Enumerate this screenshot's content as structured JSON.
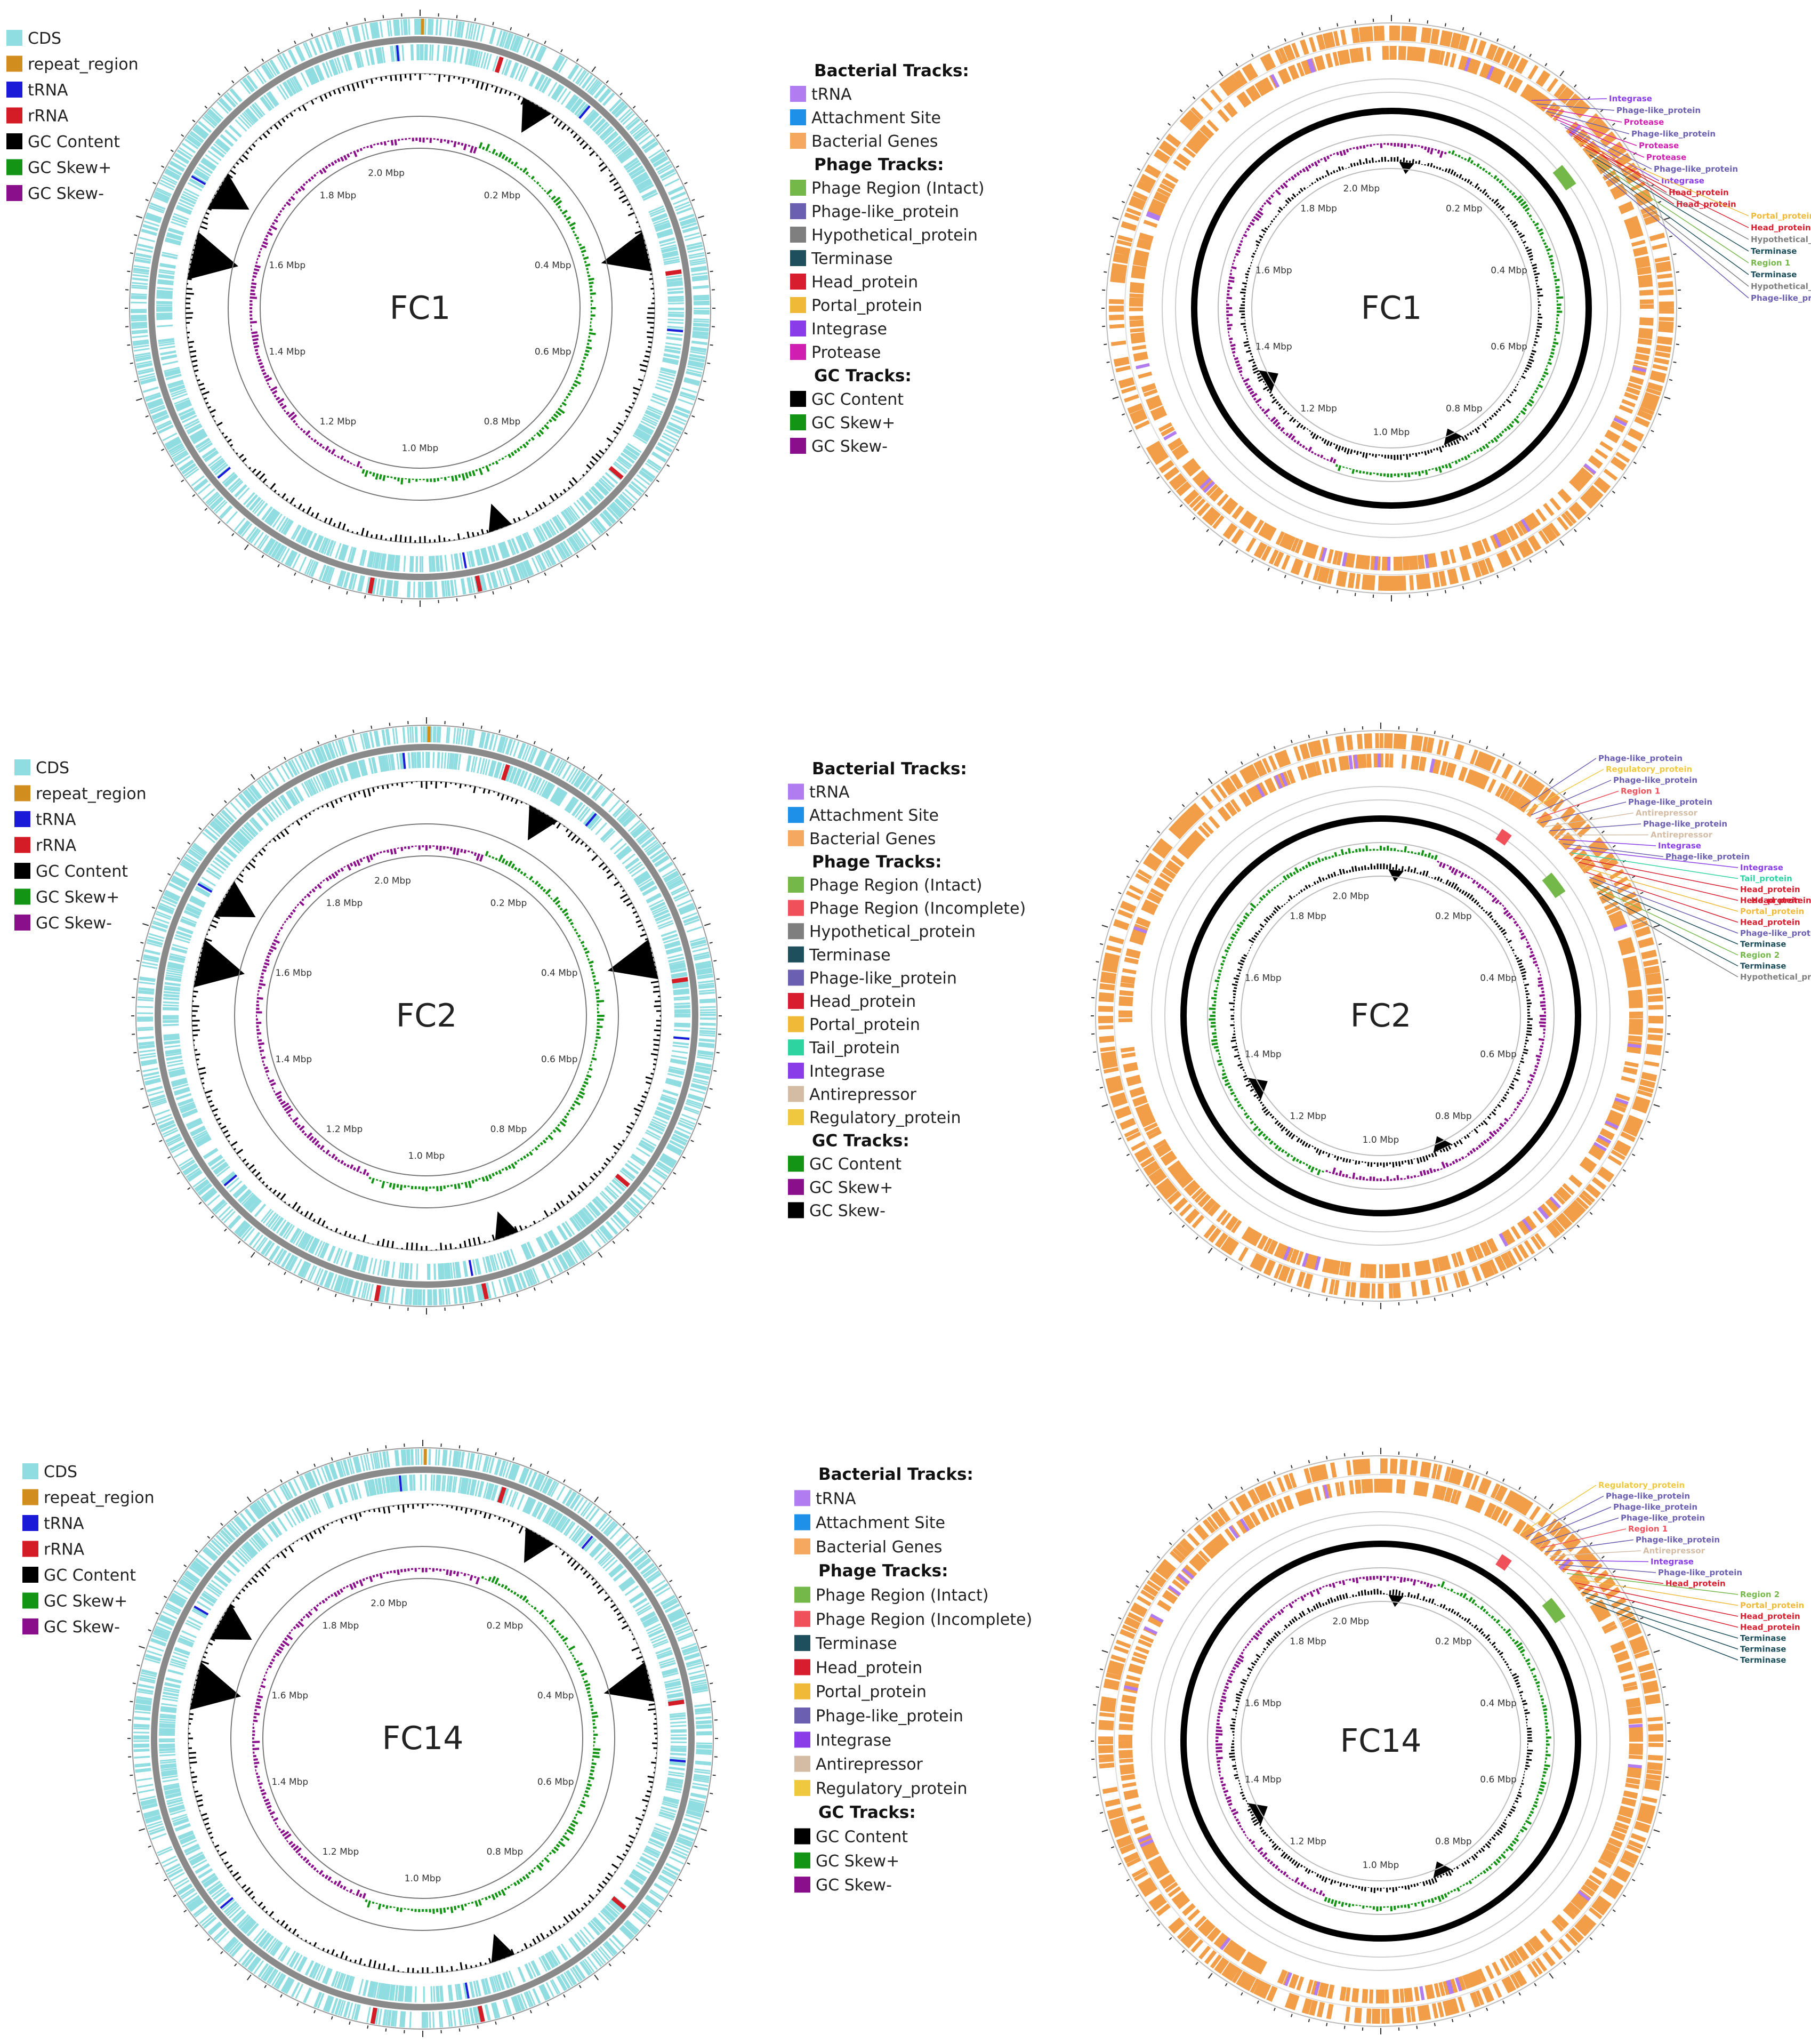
{
  "colors": {
    "CDS": "#8fdde0",
    "repeat_region": "#d18e1e",
    "tRNA_left": "#1a1ad8",
    "rRNA": "#d41c26",
    "GC_Content": "#000000",
    "GC_Skew_plus": "#149414",
    "GC_Skew_minus": "#8a0f8a",
    "ring_gray": "#8a8a8a",
    "tRNA_right": "#b07cf0",
    "Attachment_Site": "#1e90e8",
    "Bacterial_Genes": "#f5a860",
    "gene_orange": "#f08c28",
    "Phage_Region_Intact": "#74b84a",
    "Phage_Region_Incomplete": "#f0505a",
    "Hypothetical_protein": "#7f7f7f",
    "Terminase": "#1d4f5c",
    "Phage_like_protein": "#6a5fb0",
    "Head_protein": "#d81e2e",
    "Portal_protein": "#f0ba38",
    "Tail_protein": "#2ed4a0",
    "Integrase": "#8a3ce8",
    "Protease": "#d01eb0",
    "Antirepressor": "#d4bca4",
    "Regulatory_protein": "#f0c840"
  },
  "tick_labels": [
    "2.0 Mbp",
    "0.2 Mbp",
    "0.4 Mbp",
    "0.6 Mbp",
    "0.8 Mbp",
    "1.0 Mbp",
    "1.2 Mbp",
    "1.4 Mbp",
    "1.6 Mbp",
    "1.8 Mbp"
  ],
  "left_legend": [
    {
      "label": "CDS",
      "color": "#8fdde0"
    },
    {
      "label": "repeat_region",
      "color": "#d18e1e"
    },
    {
      "label": "tRNA",
      "color": "#1a1ad8"
    },
    {
      "label": "rRNA",
      "color": "#d41c26"
    },
    {
      "label": "GC Content",
      "color": "#000000"
    },
    {
      "label": "GC Skew+",
      "color": "#149414"
    },
    {
      "label": "GC Skew-",
      "color": "#8a0f8a"
    }
  ],
  "panels": [
    {
      "name": "FC1",
      "legend": [
        {
          "header": "Bacterial Tracks:"
        },
        {
          "label": "tRNA",
          "color": "#b07cf0"
        },
        {
          "label": "Attachment Site",
          "color": "#1e90e8"
        },
        {
          "label": "Bacterial Genes",
          "color": "#f5a860"
        },
        {
          "header": "Phage Tracks:"
        },
        {
          "label": "Phage Region (Intact)",
          "color": "#74b84a"
        },
        {
          "label": "Phage-like_protein",
          "color": "#6a5fb0"
        },
        {
          "label": "Hypothetical_protein",
          "color": "#7f7f7f"
        },
        {
          "label": "Terminase",
          "color": "#1d4f5c"
        },
        {
          "label": "Head_protein",
          "color": "#d81e2e"
        },
        {
          "label": "Portal_protein",
          "color": "#f0ba38"
        },
        {
          "label": "Integrase",
          "color": "#8a3ce8"
        },
        {
          "label": "Protease",
          "color": "#d01eb0"
        },
        {
          "header": "GC Tracks:"
        },
        {
          "label": "GC Content",
          "color": "#000000"
        },
        {
          "label": "GC Skew+",
          "color": "#149414"
        },
        {
          "label": "GC Skew-",
          "color": "#8a0f8a"
        }
      ],
      "callouts": [
        {
          "label": "Integrase",
          "color": "#8a3ce8"
        },
        {
          "label": "Phage-like_protein",
          "color": "#6a5fb0"
        },
        {
          "label": "Protease",
          "color": "#d01eb0"
        },
        {
          "label": "Phage-like_protein",
          "color": "#6a5fb0"
        },
        {
          "label": "Protease",
          "color": "#d01eb0"
        },
        {
          "label": "Protease",
          "color": "#d01eb0"
        },
        {
          "label": "Phage-like_protein",
          "color": "#6a5fb0"
        },
        {
          "label": "Integrase",
          "color": "#8a3ce8"
        },
        {
          "label": "Head_protein",
          "color": "#d81e2e"
        },
        {
          "label": "Head_protein",
          "color": "#d81e2e"
        },
        {
          "label": "Portal_protein",
          "color": "#f0ba38"
        },
        {
          "label": "Head_protein",
          "color": "#d81e2e"
        },
        {
          "label": "Hypothetical_protein",
          "color": "#7f7f7f"
        },
        {
          "label": "Terminase",
          "color": "#1d4f5c"
        },
        {
          "label": "Region 1",
          "color": "#74b84a"
        },
        {
          "label": "Terminase",
          "color": "#1d4f5c"
        },
        {
          "label": "Hypothetical_protein",
          "color": "#7f7f7f"
        },
        {
          "label": "Phage-like_protein",
          "color": "#6a5fb0"
        }
      ]
    },
    {
      "name": "FC2",
      "legend": [
        {
          "header": "Bacterial Tracks:"
        },
        {
          "label": "tRNA",
          "color": "#b07cf0"
        },
        {
          "label": "Attachment Site",
          "color": "#1e90e8"
        },
        {
          "label": "Bacterial Genes",
          "color": "#f5a860"
        },
        {
          "header": "Phage Tracks:"
        },
        {
          "label": "Phage Region (Intact)",
          "color": "#74b84a"
        },
        {
          "label": "Phage Region (Incomplete)",
          "color": "#f0505a"
        },
        {
          "label": "Hypothetical_protein",
          "color": "#7f7f7f"
        },
        {
          "label": "Terminase",
          "color": "#1d4f5c"
        },
        {
          "label": "Phage-like_protein",
          "color": "#6a5fb0"
        },
        {
          "label": "Head_protein",
          "color": "#d81e2e"
        },
        {
          "label": "Portal_protein",
          "color": "#f0ba38"
        },
        {
          "label": "Tail_protein",
          "color": "#2ed4a0"
        },
        {
          "label": "Integrase",
          "color": "#8a3ce8"
        },
        {
          "label": "Antirepressor",
          "color": "#d4bca4"
        },
        {
          "label": "Regulatory_protein",
          "color": "#f0c840"
        },
        {
          "header": "GC Tracks:"
        },
        {
          "label": "GC Content",
          "color": "#149414"
        },
        {
          "label": "GC Skew+",
          "color": "#8a0f8a"
        },
        {
          "label": "GC Skew-",
          "color": "#000000"
        }
      ],
      "callouts": [
        {
          "label": "Phage-like_protein",
          "color": "#6a5fb0"
        },
        {
          "label": "Regulatory_protein",
          "color": "#f0c840"
        },
        {
          "label": "Phage-like_protein",
          "color": "#6a5fb0"
        },
        {
          "label": "Region 1",
          "color": "#f0505a"
        },
        {
          "label": "Phage-like_protein",
          "color": "#6a5fb0"
        },
        {
          "label": "Antirepressor",
          "color": "#d4bca4"
        },
        {
          "label": "Phage-like_protein",
          "color": "#6a5fb0"
        },
        {
          "label": "Antirepressor",
          "color": "#d4bca4"
        },
        {
          "label": "Integrase",
          "color": "#8a3ce8"
        },
        {
          "label": "Phage-like_protein",
          "color": "#6a5fb0"
        },
        {
          "label": "Integrase",
          "color": "#8a3ce8"
        },
        {
          "label": "Tail_protein",
          "color": "#2ed4a0"
        },
        {
          "label": "Head_protein",
          "color": "#d81e2e"
        },
        {
          "label": "Head_protein",
          "color": "#d81e2e"
        },
        {
          "label": "Portal_protein",
          "color": "#f0ba38"
        },
        {
          "label": "Head_protein",
          "color": "#d81e2e"
        },
        {
          "label": "Phage-like_protein",
          "color": "#6a5fb0"
        },
        {
          "label": "Terminase",
          "color": "#1d4f5c"
        },
        {
          "label": "Region 2",
          "color": "#74b84a"
        },
        {
          "label": "Terminase",
          "color": "#1d4f5c"
        },
        {
          "label": "Hypothetical_protein",
          "color": "#7f7f7f"
        }
      ],
      "extra_callout": {
        "label": "Head_protein",
        "color": "#d81e2e"
      }
    },
    {
      "name": "FC14",
      "legend": [
        {
          "header": "Bacterial Tracks:"
        },
        {
          "label": "tRNA",
          "color": "#b07cf0"
        },
        {
          "label": "Attachment Site",
          "color": "#1e90e8"
        },
        {
          "label": "Bacterial Genes",
          "color": "#f5a860"
        },
        {
          "header": "Phage Tracks:"
        },
        {
          "label": "Phage Region (Intact)",
          "color": "#74b84a"
        },
        {
          "label": "Phage Region (Incomplete)",
          "color": "#f0505a"
        },
        {
          "label": "Terminase",
          "color": "#1d4f5c"
        },
        {
          "label": "Head_protein",
          "color": "#d81e2e"
        },
        {
          "label": "Portal_protein",
          "color": "#f0ba38"
        },
        {
          "label": "Phage-like_protein",
          "color": "#6a5fb0"
        },
        {
          "label": "Integrase",
          "color": "#8a3ce8"
        },
        {
          "label": "Antirepressor",
          "color": "#d4bca4"
        },
        {
          "label": "Regulatory_protein",
          "color": "#f0c840"
        },
        {
          "header": "GC Tracks:"
        },
        {
          "label": "GC Content",
          "color": "#000000"
        },
        {
          "label": "GC Skew+",
          "color": "#149414"
        },
        {
          "label": "GC Skew-",
          "color": "#8a0f8a"
        }
      ],
      "callouts": [
        {
          "label": "Regulatory_protein",
          "color": "#f0c840"
        },
        {
          "label": "Phage-like_protein",
          "color": "#6a5fb0"
        },
        {
          "label": "Phage-like_protein",
          "color": "#6a5fb0"
        },
        {
          "label": "Phage-like_protein",
          "color": "#6a5fb0"
        },
        {
          "label": "Region 1",
          "color": "#f0505a"
        },
        {
          "label": "Phage-like_protein",
          "color": "#6a5fb0"
        },
        {
          "label": "Antirepressor",
          "color": "#d4bca4"
        },
        {
          "label": "Integrase",
          "color": "#8a3ce8"
        },
        {
          "label": "Phage-like_protein",
          "color": "#6a5fb0"
        },
        {
          "label": "Head_protein",
          "color": "#d81e2e"
        },
        {
          "label": "Region 2",
          "color": "#74b84a"
        },
        {
          "label": "Portal_protein",
          "color": "#f0ba38"
        },
        {
          "label": "Head_protein",
          "color": "#d81e2e"
        },
        {
          "label": "Head_protein",
          "color": "#d81e2e"
        },
        {
          "label": "Terminase",
          "color": "#1d4f5c"
        },
        {
          "label": "Terminase",
          "color": "#1d4f5c"
        },
        {
          "label": "Terminase",
          "color": "#1d4f5c"
        }
      ]
    }
  ]
}
